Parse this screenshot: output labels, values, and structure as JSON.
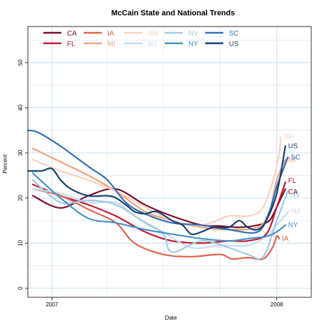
{
  "chart_data": {
    "type": "line",
    "title": "McCain State and National Trends",
    "xlabel": "Date",
    "ylabel": "Percent",
    "xlim": [
      "2006-11-23",
      "2008-02-26"
    ],
    "ylim": [
      -2,
      58
    ],
    "yticks": [
      0,
      10,
      20,
      30,
      40,
      50
    ],
    "xticks": [
      {
        "date": "2007-01-01",
        "label": "2007"
      },
      {
        "date": "2008-01-01",
        "label": "2008"
      }
    ],
    "x_minor_grid": [
      "2007-04-01",
      "2007-07-01",
      "2007-10-01"
    ],
    "y_minor_grid": [
      5,
      15,
      25,
      35,
      45,
      55
    ],
    "grid": true,
    "legend_position": "top-left",
    "legend_order": [
      "CA",
      "FL",
      "IA",
      "MI",
      "NH",
      "NJ",
      "NV",
      "NY",
      "SC",
      "US"
    ],
    "series": [
      {
        "name": "CA",
        "color": "#7a0a2a",
        "end_label": "CA",
        "points": [
          [
            "2006-12-01",
            20.5
          ],
          [
            "2007-01-15",
            17.8
          ],
          [
            "2007-03-01",
            20.5
          ],
          [
            "2007-04-15",
            22
          ],
          [
            "2007-06-01",
            18.5
          ],
          [
            "2007-07-15",
            16
          ],
          [
            "2007-09-01",
            14
          ],
          [
            "2007-10-01",
            13.8
          ],
          [
            "2007-11-01",
            13.5
          ],
          [
            "2007-12-01",
            14
          ],
          [
            "2007-12-20",
            15
          ],
          [
            "2008-01-01",
            18
          ],
          [
            "2008-01-15",
            22
          ]
        ]
      },
      {
        "name": "FL",
        "color": "#c0182f",
        "end_label": "FL",
        "points": [
          [
            "2006-12-01",
            23
          ],
          [
            "2007-01-15",
            20.5
          ],
          [
            "2007-03-01",
            18.5
          ],
          [
            "2007-04-15",
            16
          ],
          [
            "2007-06-01",
            12.5
          ],
          [
            "2007-07-15",
            10.5
          ],
          [
            "2007-09-01",
            10
          ],
          [
            "2007-10-15",
            10.5
          ],
          [
            "2007-11-15",
            10.5
          ],
          [
            "2007-12-15",
            12
          ],
          [
            "2008-01-01",
            18
          ],
          [
            "2008-01-15",
            23.5
          ]
        ]
      },
      {
        "name": "IA",
        "color": "#e0634e",
        "end_label": "IA",
        "points": [
          [
            "2006-12-01",
            22
          ],
          [
            "2007-01-15",
            20.5
          ],
          [
            "2007-03-01",
            17.5
          ],
          [
            "2007-04-15",
            14.5
          ],
          [
            "2007-05-15",
            10
          ],
          [
            "2007-07-01",
            7.5
          ],
          [
            "2007-08-15",
            7
          ],
          [
            "2007-10-01",
            7.5
          ],
          [
            "2007-10-20",
            6.5
          ],
          [
            "2007-11-15",
            6.8
          ],
          [
            "2007-12-10",
            6.5
          ],
          [
            "2007-12-25",
            9
          ],
          [
            "2008-01-01",
            11.5
          ],
          [
            "2008-01-05",
            11
          ]
        ]
      },
      {
        "name": "MI",
        "color": "#f2a27c",
        "end_label": "MI",
        "points": [
          [
            "2006-12-01",
            31
          ],
          [
            "2007-01-15",
            28
          ],
          [
            "2007-03-01",
            25
          ],
          [
            "2007-04-15",
            21.5
          ],
          [
            "2007-06-01",
            17
          ],
          [
            "2007-07-15",
            15
          ],
          [
            "2007-09-01",
            13.5
          ],
          [
            "2007-10-15",
            13
          ],
          [
            "2007-12-01",
            13.5
          ],
          [
            "2007-12-20",
            17
          ],
          [
            "2008-01-01",
            24
          ],
          [
            "2008-01-15",
            28.5
          ]
        ]
      },
      {
        "name": "NH",
        "color": "#fbd0bd",
        "end_label": "NH",
        "points": [
          [
            "2006-12-01",
            28.5
          ],
          [
            "2007-01-15",
            26
          ],
          [
            "2007-03-01",
            24
          ],
          [
            "2007-04-15",
            21.5
          ],
          [
            "2007-06-01",
            18
          ],
          [
            "2007-07-15",
            15
          ],
          [
            "2007-09-01",
            14
          ],
          [
            "2007-10-15",
            16
          ],
          [
            "2007-11-15",
            16
          ],
          [
            "2007-12-10",
            18
          ],
          [
            "2008-01-01",
            27
          ],
          [
            "2008-01-08",
            33.5
          ]
        ]
      },
      {
        "name": "NJ",
        "color": "#c6dbef",
        "end_label": "NJ",
        "points": [
          [
            "2006-12-01",
            22
          ],
          [
            "2007-01-15",
            21
          ],
          [
            "2007-03-01",
            19
          ],
          [
            "2007-04-15",
            19
          ],
          [
            "2007-05-15",
            16
          ],
          [
            "2007-07-01",
            12.5
          ],
          [
            "2007-08-15",
            9
          ],
          [
            "2007-10-01",
            9.5
          ],
          [
            "2007-11-15",
            9.5
          ],
          [
            "2007-12-15",
            11.5
          ],
          [
            "2008-01-01",
            14
          ],
          [
            "2008-01-20",
            17
          ]
        ]
      },
      {
        "name": "NV",
        "color": "#9ecae1",
        "end_label": "NV",
        "points": [
          [
            "2006-12-01",
            24
          ],
          [
            "2007-01-15",
            19
          ],
          [
            "2007-03-01",
            19.5
          ],
          [
            "2007-04-15",
            18.5
          ],
          [
            "2007-06-01",
            14.5
          ],
          [
            "2007-07-01",
            12
          ],
          [
            "2007-07-15",
            8
          ],
          [
            "2007-09-01",
            10.5
          ],
          [
            "2007-10-15",
            9
          ],
          [
            "2007-11-15",
            7.5
          ],
          [
            "2007-12-10",
            7
          ],
          [
            "2008-01-01",
            15
          ],
          [
            "2008-01-19",
            21.5
          ]
        ]
      },
      {
        "name": "NY",
        "color": "#4292c6",
        "end_label": "NY",
        "points": [
          [
            "2006-12-01",
            25.5
          ],
          [
            "2007-01-15",
            20
          ],
          [
            "2007-03-01",
            15.5
          ],
          [
            "2007-04-15",
            14.5
          ],
          [
            "2007-06-01",
            13
          ],
          [
            "2007-07-15",
            12
          ],
          [
            "2007-09-01",
            11
          ],
          [
            "2007-10-15",
            10.5
          ],
          [
            "2007-11-15",
            11
          ],
          [
            "2007-12-15",
            11.5
          ],
          [
            "2008-01-01",
            12.5
          ],
          [
            "2008-01-15",
            14
          ]
        ]
      },
      {
        "name": "SC",
        "color": "#2f6fb1",
        "end_label": "SC",
        "points": [
          [
            "2006-11-23",
            35
          ],
          [
            "2006-12-10",
            34.5
          ],
          [
            "2007-01-15",
            31.5
          ],
          [
            "2007-03-01",
            27
          ],
          [
            "2007-04-01",
            24
          ],
          [
            "2007-05-01",
            19
          ],
          [
            "2007-06-01",
            16.5
          ],
          [
            "2007-07-15",
            14.5
          ],
          [
            "2007-09-01",
            14
          ],
          [
            "2007-10-15",
            13
          ],
          [
            "2007-12-01",
            12.5
          ],
          [
            "2007-12-20",
            17
          ],
          [
            "2008-01-01",
            22.5
          ],
          [
            "2008-01-19",
            29
          ]
        ]
      },
      {
        "name": "US",
        "color": "#163f6e",
        "end_label": "US",
        "points": [
          [
            "2006-11-23",
            26
          ],
          [
            "2006-12-15",
            26
          ],
          [
            "2007-01-01",
            26.5
          ],
          [
            "2007-01-15",
            24
          ],
          [
            "2007-02-01",
            22
          ],
          [
            "2007-03-01",
            20.5
          ],
          [
            "2007-04-01",
            20.5
          ],
          [
            "2007-04-15",
            20
          ],
          [
            "2007-05-01",
            18.5
          ],
          [
            "2007-05-15",
            17
          ],
          [
            "2007-06-01",
            16.5
          ],
          [
            "2007-06-20",
            17
          ],
          [
            "2007-07-15",
            15
          ],
          [
            "2007-08-01",
            14
          ],
          [
            "2007-08-15",
            12
          ],
          [
            "2007-09-01",
            12.5
          ],
          [
            "2007-09-20",
            13.5
          ],
          [
            "2007-10-15",
            13.5
          ],
          [
            "2007-11-01",
            15
          ],
          [
            "2007-11-15",
            13.5
          ],
          [
            "2007-12-01",
            13
          ],
          [
            "2007-12-15",
            15
          ],
          [
            "2008-01-01",
            21
          ],
          [
            "2008-01-15",
            31.5
          ]
        ]
      }
    ]
  }
}
